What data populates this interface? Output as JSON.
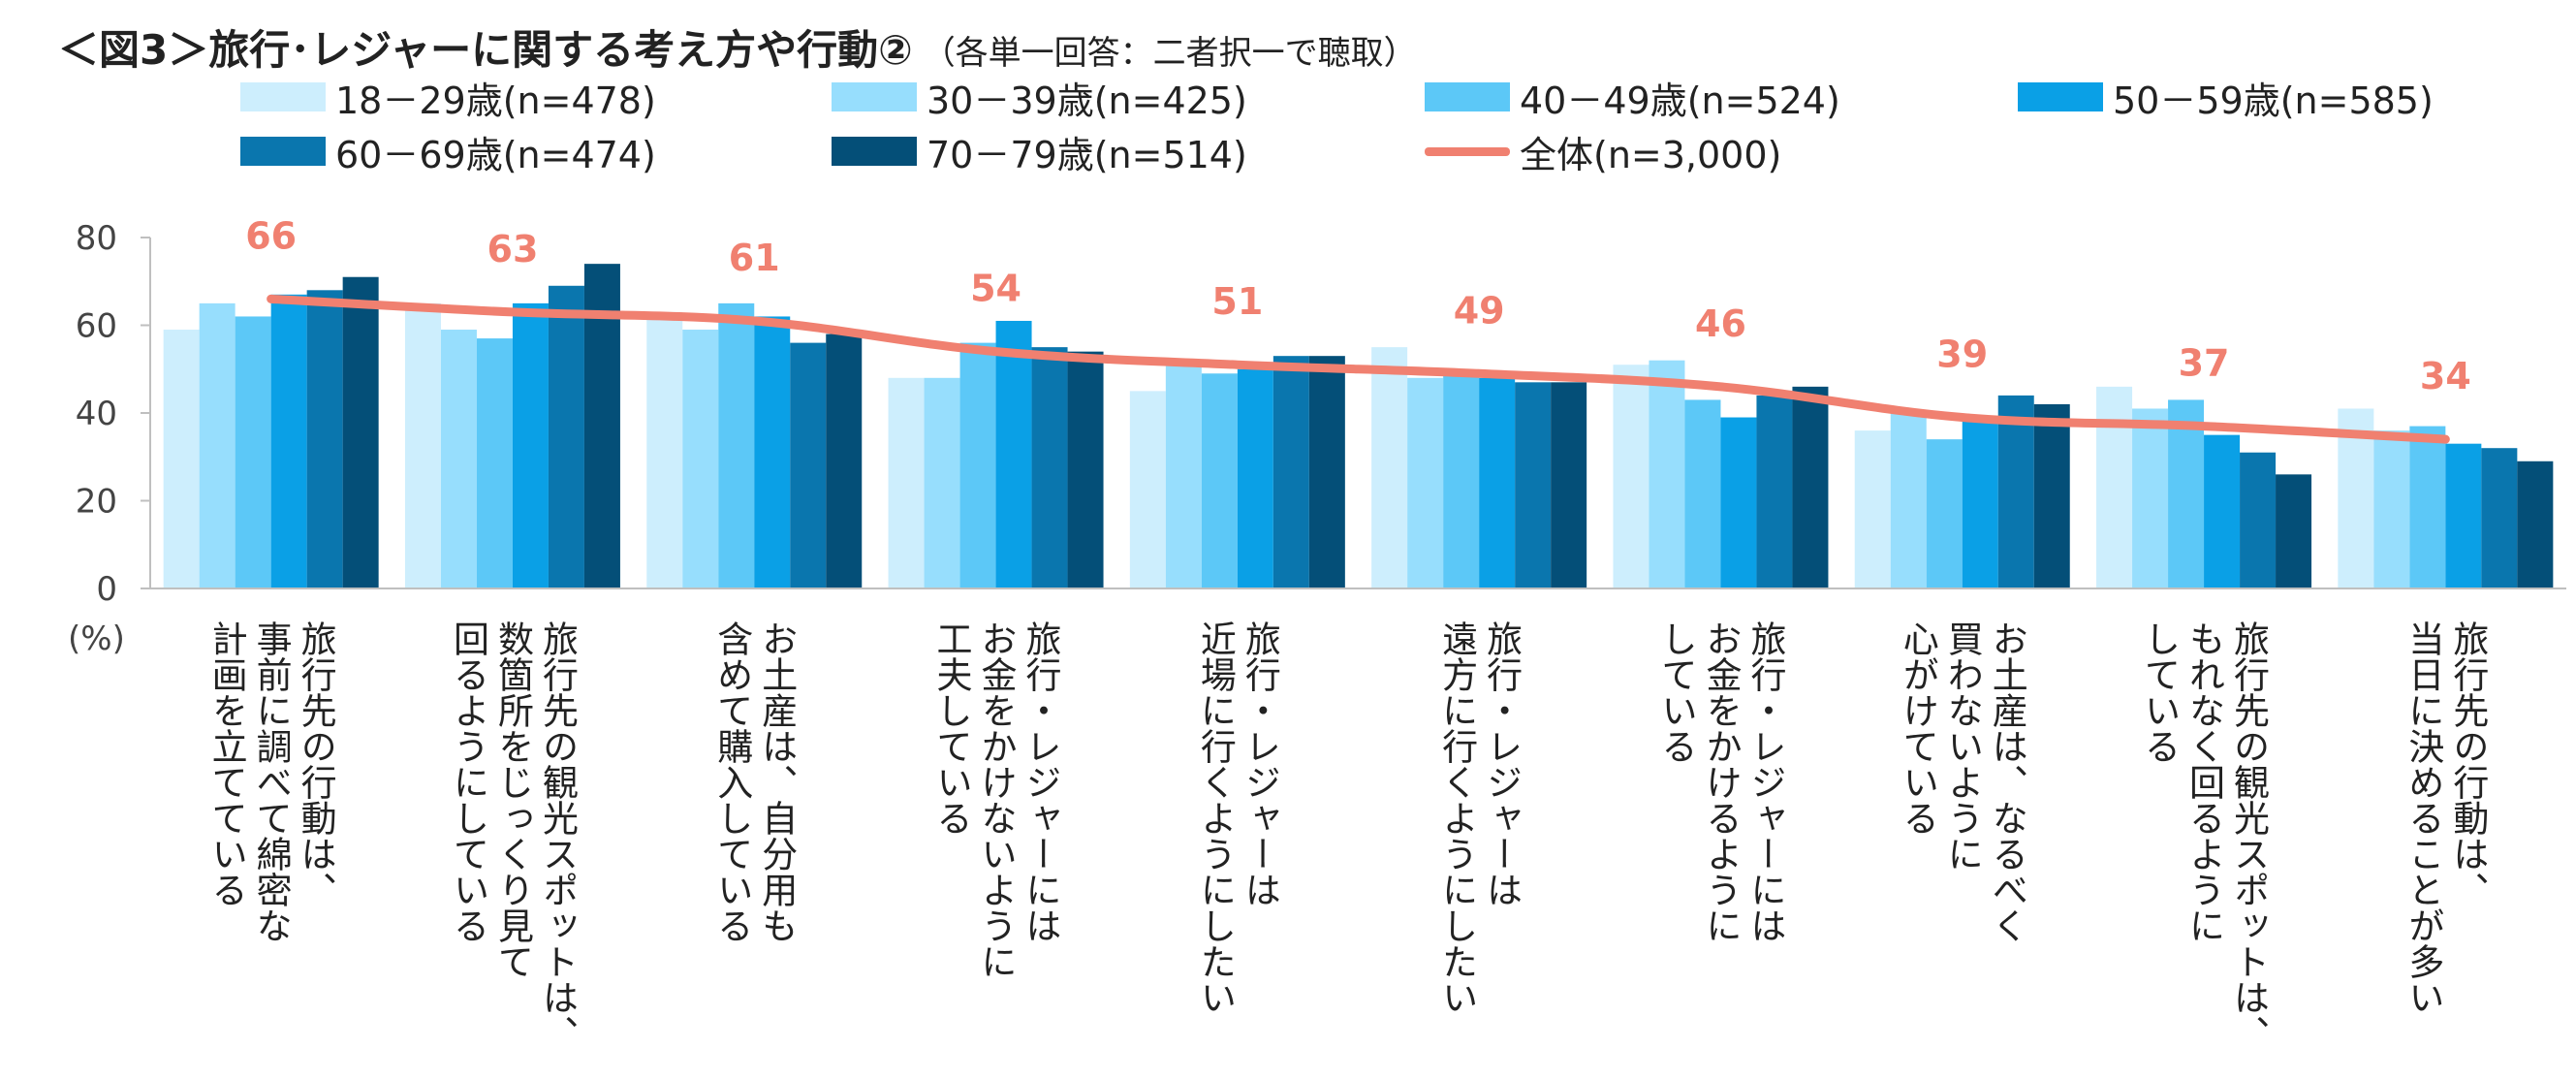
{
  "title": "＜図3＞旅行･レジャーに関する考え方や行動②",
  "subtitle": "（各単一回答：二者択一で聴取）",
  "chart_data": {
    "type": "bar",
    "unit_label": "(%)",
    "ylim": [
      0,
      80
    ],
    "yticks": [
      0,
      20,
      40,
      60,
      80
    ],
    "categories": [
      "旅行先の行動は、事前に調べて綿密な計画を立てている",
      "旅行先の観光スポットは、数箇所をじっくり見て回るようにしている",
      "お土産は、自分用も含めて購入している",
      "旅行・レジャーにはお金をかけないように工夫している",
      "旅行・レジャーは近場に行くようにしたい",
      "旅行・レジャーは遠方に行くようにしたい",
      "旅行・レジャーにはお金をかけるようにしている",
      "お土産は、なるべく買わないように心がけている",
      "旅行先の観光スポットは、もれなく回るようにしている",
      "旅行先の行動は、当日に決めることが多い"
    ],
    "category_lines": [
      [
        "旅行先の行動は、",
        "事前に調べて綿密な",
        "計画を立てている"
      ],
      [
        "旅行先の観光スポットは、",
        "数箇所をじっくり見て",
        "回るようにしている"
      ],
      [
        "お土産は、自分用も",
        "含めて購入している"
      ],
      [
        "旅行・レジャーには",
        "お金をかけないように",
        "工夫している"
      ],
      [
        "旅行・レジャーは",
        "近場に行くようにしたい"
      ],
      [
        "旅行・レジャーは",
        "遠方に行くようにしたい"
      ],
      [
        "旅行・レジャーには",
        "お金をかけるように",
        "している"
      ],
      [
        "お土産は、なるべく",
        "買わないように",
        "心がけている"
      ],
      [
        "旅行先の観光スポットは、",
        "もれなく回るように",
        "している"
      ],
      [
        "旅行先の行動は、",
        "当日に決めることが多い"
      ]
    ],
    "series": [
      {
        "name": "18－29歳(n=478)",
        "color": "#cdeefd",
        "values": [
          59,
          65,
          63,
          48,
          45,
          55,
          51,
          36,
          46,
          41
        ]
      },
      {
        "name": "30－39歳(n=425)",
        "color": "#97defd",
        "values": [
          65,
          59,
          59,
          48,
          51,
          48,
          52,
          40,
          41,
          36
        ]
      },
      {
        "name": "40－49歳(n=524)",
        "color": "#5cc8f7",
        "values": [
          62,
          57,
          65,
          56,
          49,
          49,
          43,
          34,
          43,
          37
        ]
      },
      {
        "name": "50－59歳(n=585)",
        "color": "#0aa0e6",
        "values": [
          67,
          65,
          62,
          61,
          50,
          48,
          39,
          39,
          35,
          33
        ]
      },
      {
        "name": "60－69歳(n=474)",
        "color": "#0a76ae",
        "values": [
          68,
          69,
          56,
          55,
          53,
          47,
          44,
          44,
          31,
          32
        ]
      },
      {
        "name": "70－79歳(n=514)",
        "color": "#044f78",
        "values": [
          71,
          74,
          58,
          54,
          53,
          47,
          46,
          42,
          26,
          29
        ]
      }
    ],
    "line_series": {
      "name": "全体(n=3,000)",
      "color": "#f08070",
      "values": [
        66,
        63,
        61,
        54,
        51,
        49,
        46,
        39,
        37,
        34
      ]
    },
    "legend_position": "top",
    "grid": false
  }
}
